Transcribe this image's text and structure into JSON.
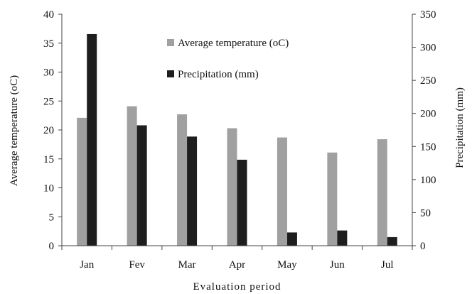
{
  "chart_data": {
    "type": "bar",
    "categories": [
      "Jan",
      "Fev",
      "Mar",
      "Apr",
      "May",
      "Jun",
      "Jul"
    ],
    "series": [
      {
        "name": "Average temperature (oC)",
        "axis": "left",
        "color": "#a0a0a0",
        "values": [
          22.1,
          24.1,
          22.7,
          20.3,
          18.7,
          16.1,
          18.4
        ]
      },
      {
        "name": "Precipitation (mm)",
        "axis": "right",
        "color": "#1e1e1e",
        "values": [
          320,
          182,
          165,
          130,
          20,
          23,
          13
        ]
      }
    ],
    "xlabel": "Evaluation period",
    "ylabel_left": "Average temperature (oC)",
    "ylabel_right": "Precipitation (mm)",
    "ylim_left": [
      0,
      40
    ],
    "ylim_right": [
      0,
      350
    ],
    "yticks_left": [
      0,
      5,
      10,
      15,
      20,
      25,
      30,
      35,
      40
    ],
    "yticks_right": [
      0,
      50,
      100,
      150,
      200,
      250,
      300,
      350
    ],
    "grid": false,
    "legend_position": "top-center"
  }
}
